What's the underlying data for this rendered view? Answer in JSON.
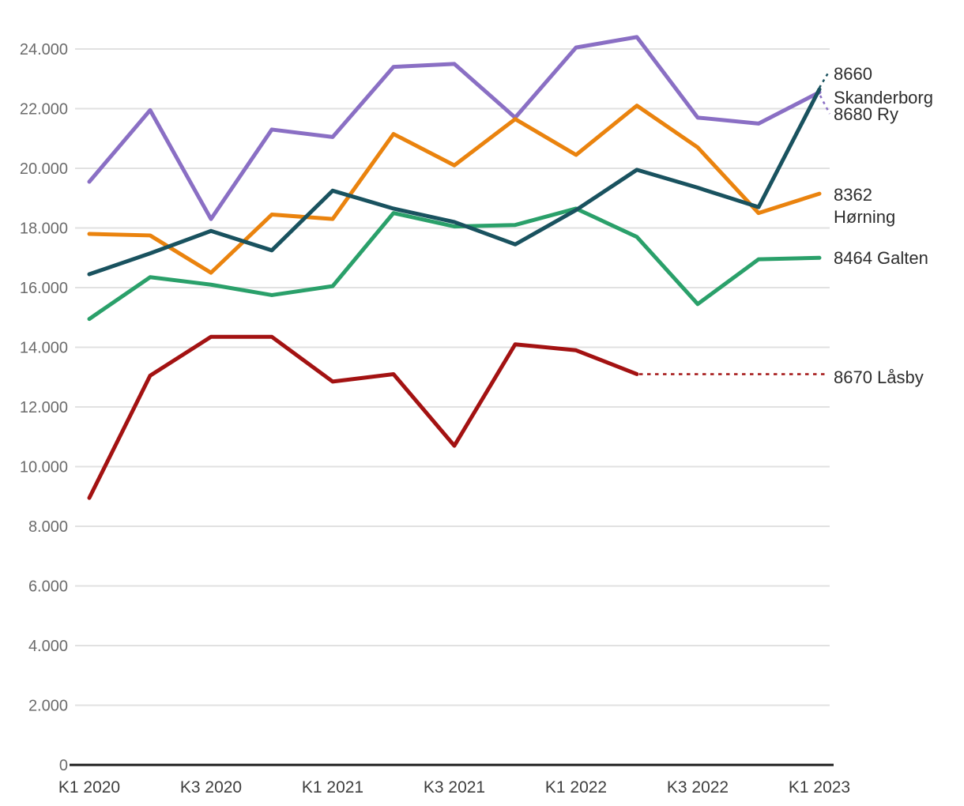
{
  "chart_data": {
    "type": "line",
    "title": "",
    "x": [
      "K1 2020",
      "K2 2020",
      "K3 2020",
      "K4 2020",
      "K1 2021",
      "K2 2021",
      "K3 2021",
      "K4 2021",
      "K1 2022",
      "K2 2022",
      "K3 2022",
      "K4 2022",
      "K1 2023"
    ],
    "x_ticks": [
      {
        "index": 0,
        "label": "K1 2020"
      },
      {
        "index": 2,
        "label": "K3 2020"
      },
      {
        "index": 4,
        "label": "K1 2021"
      },
      {
        "index": 6,
        "label": "K3 2021"
      },
      {
        "index": 8,
        "label": "K1 2022"
      },
      {
        "index": 10,
        "label": "K3 2022"
      },
      {
        "index": 12,
        "label": "K1 2023"
      }
    ],
    "y_ticks": [
      {
        "value": 0,
        "label": "0"
      },
      {
        "value": 2000,
        "label": "2.000"
      },
      {
        "value": 4000,
        "label": "4.000"
      },
      {
        "value": 6000,
        "label": "6.000"
      },
      {
        "value": 8000,
        "label": "8.000"
      },
      {
        "value": 10000,
        "label": "10.000"
      },
      {
        "value": 12000,
        "label": "12.000"
      },
      {
        "value": 14000,
        "label": "14.000"
      },
      {
        "value": 16000,
        "label": "16.000"
      },
      {
        "value": 18000,
        "label": "18.000"
      },
      {
        "value": 20000,
        "label": "20.000"
      },
      {
        "value": 22000,
        "label": "22.000"
      },
      {
        "value": 24000,
        "label": "24.000"
      }
    ],
    "ylim": [
      0,
      24000
    ],
    "grid": true,
    "legend_position": "right-end-labels",
    "series": [
      {
        "id": "8660-skanderborg",
        "name": "8660 Skanderborg",
        "label_lines": [
          "8660",
          "Skanderborg"
        ],
        "color": "#19525f",
        "dashed_to_label": false,
        "values": [
          16450,
          17150,
          17900,
          17250,
          19250,
          18650,
          18200,
          17450,
          18600,
          19950,
          19350,
          18700,
          22650
        ]
      },
      {
        "id": "8680-ry",
        "name": "8680 Ry",
        "label_lines": [
          "8680 Ry"
        ],
        "color": "#8a6fc4",
        "dashed_to_label": false,
        "values": [
          19550,
          21950,
          18300,
          21300,
          21050,
          23400,
          23500,
          21700,
          24050,
          24400,
          21700,
          21500,
          22550
        ]
      },
      {
        "id": "8362-horning",
        "name": "8362 Hørning",
        "label_lines": [
          "8362",
          "Hørning"
        ],
        "color": "#ea830e",
        "dashed_to_label": false,
        "values": [
          17800,
          17750,
          16500,
          18450,
          18300,
          21150,
          20100,
          21650,
          20450,
          22100,
          20700,
          18500,
          19150
        ]
      },
      {
        "id": "8464-galten",
        "name": "8464 Galten",
        "label_lines": [
          "8464 Galten"
        ],
        "color": "#2aa06a",
        "dashed_to_label": false,
        "values": [
          14950,
          16350,
          16100,
          15750,
          16050,
          18500,
          18050,
          18100,
          18650,
          17700,
          15450,
          16950,
          17000
        ]
      },
      {
        "id": "8670-lasby",
        "name": "8670 Låsby",
        "label_lines": [
          "8670 Låsby"
        ],
        "color": "#a31212",
        "dashed_to_label": true,
        "values": [
          8950,
          13050,
          14350,
          14350,
          12850,
          13100,
          10700,
          14100,
          13900,
          13100,
          null,
          null,
          null
        ]
      }
    ]
  }
}
